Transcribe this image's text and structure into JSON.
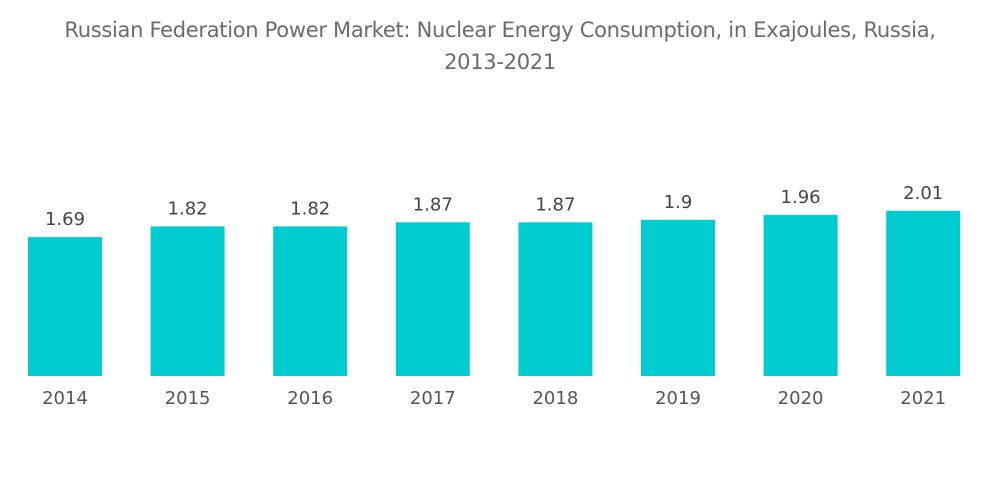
{
  "chart_data": {
    "type": "bar",
    "title_lines": [
      "Russian Federation Power Market: Nuclear Energy Consumption, in Exajoules, Russia,",
      "2013-2021"
    ],
    "title": "Russian Federation Power Market: Nuclear Energy Consumption, in Exajoules, Russia, 2013-2021",
    "categories": [
      "2014",
      "2015",
      "2016",
      "2017",
      "2018",
      "2019",
      "2020",
      "2021"
    ],
    "values": [
      1.69,
      1.82,
      1.82,
      1.87,
      1.87,
      1.9,
      1.96,
      2.01
    ],
    "data_labels": [
      "1.69",
      "1.82",
      "1.82",
      "1.87",
      "1.87",
      "1.9",
      "1.96",
      "2.01"
    ],
    "xlabel": "",
    "ylabel": "",
    "ylim": [
      0,
      2.01
    ],
    "y_axis_visible": false,
    "grid": false,
    "legend": "none",
    "bar_color": "#00cccf"
  }
}
